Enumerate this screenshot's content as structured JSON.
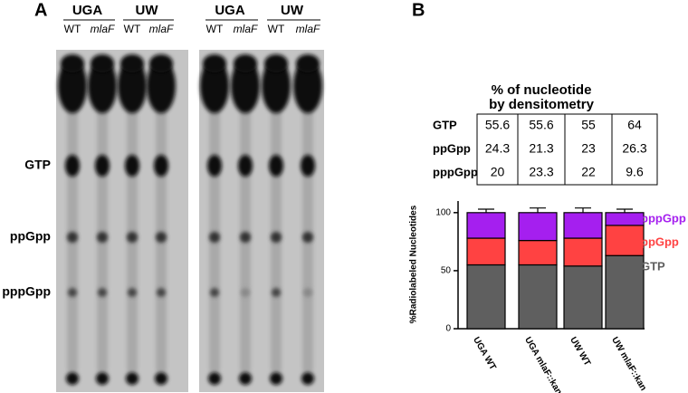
{
  "panel_a": {
    "label": "A",
    "gels": [
      {
        "groups": [
          {
            "name": "UGA",
            "lanes": [
              "WT",
              "mlaF"
            ]
          },
          {
            "name": "UW",
            "lanes": [
              "WT",
              "mlaF"
            ]
          }
        ]
      },
      {
        "groups": [
          {
            "name": "UGA",
            "lanes": [
              "WT",
              "mlaF"
            ]
          },
          {
            "name": "UW",
            "lanes": [
              "WT",
              "mlaF"
            ]
          }
        ]
      }
    ],
    "bands": [
      "GTP",
      "ppGpp",
      "pppGpp"
    ]
  },
  "panel_b": {
    "label": "B",
    "table": {
      "title": [
        "% of nucleotide",
        "by densitometry"
      ],
      "rows": [
        [
          "GTP",
          55.6,
          55.6,
          55,
          64
        ],
        [
          "ppGpp",
          24.3,
          21.3,
          23,
          26.3
        ],
        [
          "pppGpp",
          20,
          23.3,
          22,
          9.6
        ]
      ]
    }
  },
  "chart_data": {
    "type": "stacked_bar",
    "y_label": "%Radiolabeled  Nucleotides",
    "categories": [
      "UGA WT",
      "UGA mlaF::kan",
      "UW WT",
      "UW mlaF::kan"
    ],
    "series": [
      {
        "name": "GTP",
        "color": "#5f5f5f",
        "values": [
          55,
          55,
          54,
          63
        ],
        "errors": [
          4,
          3,
          4,
          3
        ]
      },
      {
        "name": "ppGpp",
        "color": "#ff4242",
        "values": [
          23,
          21,
          24,
          26
        ],
        "errors": [
          6,
          5,
          1,
          3
        ]
      },
      {
        "name": "pppGpp",
        "color": "#a51fef",
        "values": [
          22,
          24,
          22,
          11
        ],
        "errors": [
          3,
          4,
          4,
          3
        ]
      }
    ],
    "ylim": [
      0,
      110
    ],
    "yticks": [
      0,
      50,
      100
    ]
  }
}
